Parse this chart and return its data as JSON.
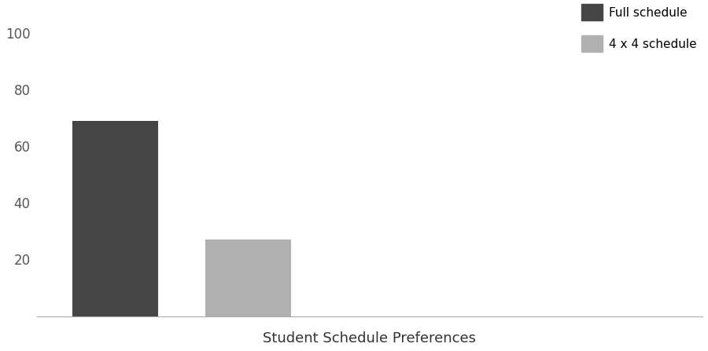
{
  "categories": [
    "Full schedule",
    "4 x 4 schedule"
  ],
  "values": [
    69,
    27
  ],
  "bar_colors": [
    "#454545",
    "#b0b0b0"
  ],
  "xlabel": "Student Schedule Preferences",
  "ylabel": "",
  "ylim": [
    0,
    107
  ],
  "yticks": [
    20,
    40,
    60,
    80,
    100
  ],
  "legend_labels": [
    "Full schedule",
    "4 x 4 schedule"
  ],
  "legend_colors": [
    "#454545",
    "#b0b0b0"
  ],
  "background_color": "#ffffff",
  "xlabel_fontsize": 13,
  "tick_fontsize": 12,
  "bar_positions": [
    1.5,
    3.2
  ],
  "bar_width": 1.1,
  "xlim": [
    0.5,
    9.0
  ]
}
